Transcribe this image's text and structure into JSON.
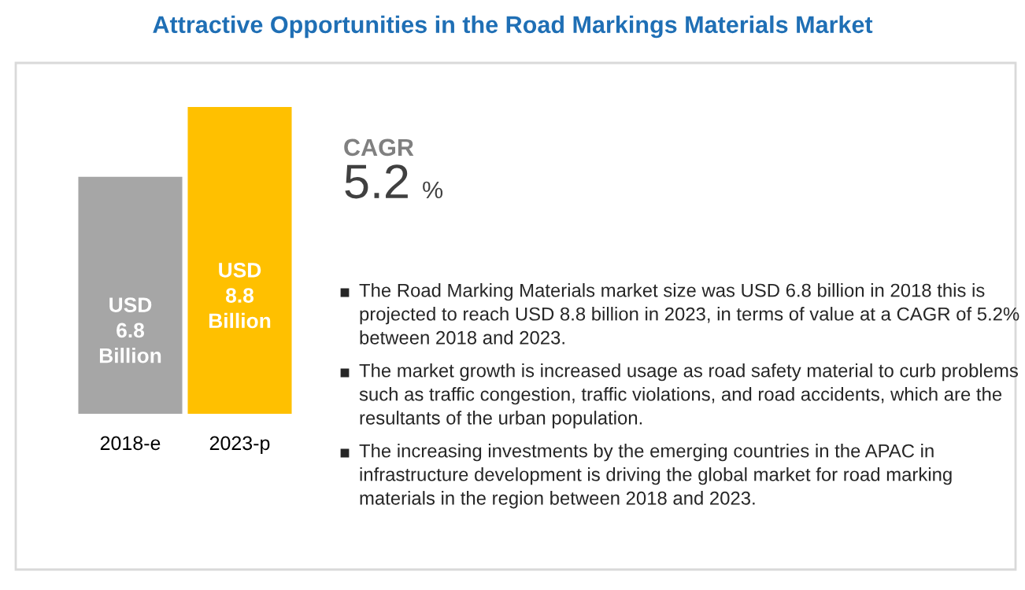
{
  "chart_data": {
    "type": "bar",
    "title": "Attractive Opportunities in the Road Markings Materials Market",
    "categories": [
      "2018-e",
      "2023-p"
    ],
    "values": [
      6.8,
      8.8
    ],
    "colors": [
      "#a6a6a6",
      "#ffc000"
    ],
    "value_labels": [
      "USD 6.8 Billion",
      "USD 8.8 Billion"
    ],
    "annotations": [
      "CAGR",
      "5.2 %",
      "The Road Marking Materials market size was USD 6.8 billion in 2018 this is projected to reach USD 8.8 billion in 2023, in terms of value at a CAGR of 5.2% between 2018 and 2023.",
      "The market growth is increased usage as road safety material to curb problems such as traffic congestion, traffic violations, and road accidents, which are the resultants of the urban population.",
      "The increasing investments by the emerging countries in the APAC in infrastructure development is driving the global market for road marking materials in the region between 2018 and 2023."
    ]
  }
}
